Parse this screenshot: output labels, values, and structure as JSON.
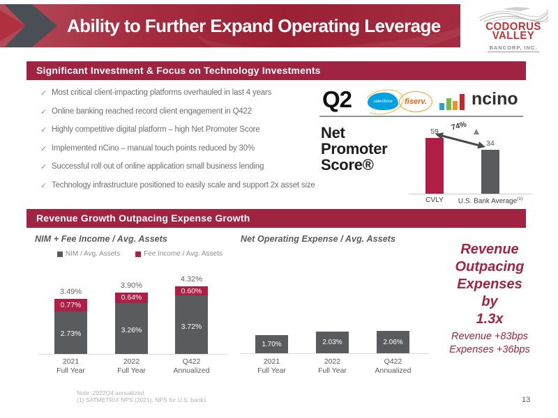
{
  "slide": {
    "title": "Ability to Further Expand Operating Leverage",
    "page_number": "13"
  },
  "logo": {
    "line1": "CODORUS",
    "line2": "VALLEY",
    "line3": "BANCORP, INC."
  },
  "tech_section": {
    "header": "Significant Investment & Focus on Technology Investments",
    "check_glyph": "✓",
    "bullets": [
      "Most critical client-impacting platforms overhauled in last 4 years",
      "Online banking reached record client engagement in Q422",
      "Highly competitive digital platform – high Net Promoter Score",
      "Implemented nCino – manual touch points reduced by 30%",
      "Successful roll out of online application small business lending",
      "Technology infrastructure positioned to easily scale and support 2x asset size"
    ],
    "vendors": {
      "q2": "Q2",
      "salesforce": "salesforce",
      "fiserv": "fiserv.",
      "ncino": "ncino"
    },
    "nps_heading": [
      "Net",
      "Promoter",
      "Score®"
    ]
  },
  "revenue_section": {
    "header": "Revenue Growth Outpacing Expense Growth"
  },
  "callout": {
    "main_lines": [
      "Revenue",
      "Outpacing",
      "Expenses",
      "by",
      "1.3x"
    ],
    "sub_lines": [
      "Revenue +83bps",
      "Expenses +36bps"
    ],
    "color": "#a12441"
  },
  "footnotes": [
    "Note: 2022Q4 annualized.",
    "(1) SATMETRIX NPS (2021). NPS for U.S. banks"
  ],
  "colors": {
    "banner_crimson": "#a02342",
    "bar_gray": "#595b5f",
    "bar_crimson": "#b01e45",
    "salesforce_blue": "#00a1e0",
    "fiserv_orange": "#ff5a00",
    "ncino_bar_colors": [
      "#2d9fd8",
      "#7ab648",
      "#f0931f",
      "#cf2030"
    ]
  },
  "chart_data": [
    {
      "id": "nps",
      "type": "bar",
      "title": "Net Promoter Score®",
      "categories": [
        "CVLY",
        "U.S. Bank Average"
      ],
      "category_superscripts": [
        "",
        "(1)"
      ],
      "values": [
        59,
        34
      ],
      "bar_colors": [
        "#b01e45",
        "#595b5f"
      ],
      "annotation": "74%",
      "annotation_note": "double-headed arrow between bar tops with gray triangle",
      "gridlines": false
    },
    {
      "id": "nim_fee",
      "type": "bar",
      "stacked": true,
      "title": "NIM + Fee Income / Avg. Assets",
      "categories": [
        "2021\nFull Year",
        "2022\nFull Year",
        "Q422\nAnnualized"
      ],
      "series": [
        {
          "name": "NIM / Avg. Assets",
          "color": "#595b5f",
          "values": [
            2.73,
            3.26,
            3.72
          ]
        },
        {
          "name": "Fee Income / Avg. Assets",
          "color": "#b01e45",
          "values": [
            0.77,
            0.64,
            0.6
          ]
        }
      ],
      "totals": [
        3.49,
        3.9,
        4.32
      ],
      "value_suffix": "%",
      "legend_position": "top",
      "gridlines": false
    },
    {
      "id": "expense",
      "type": "bar",
      "title": "Net Operating Expense / Avg. Assets",
      "categories": [
        "2021\nFull Year",
        "2022\nFull Year",
        "Q422\nAnnualized"
      ],
      "values": [
        1.7,
        2.03,
        2.06
      ],
      "bar_color": "#595b5f",
      "value_suffix": "%",
      "gridlines": false
    }
  ]
}
